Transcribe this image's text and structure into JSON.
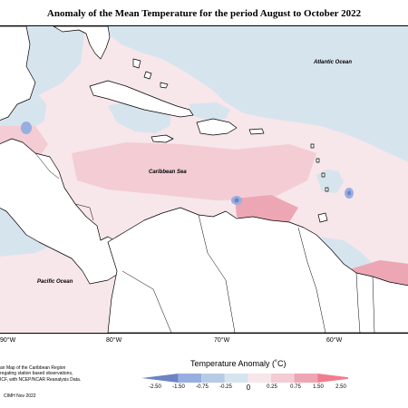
{
  "title": "Anomaly of the Mean Temperature for the period August to October 2022",
  "ocean_labels": {
    "atlantic": "Atlantic Ocean",
    "caribbean": "Caribbean Sea",
    "pacific": "Pacific Ocean"
  },
  "lon_labels": [
    "90°W",
    "80°W",
    "70°W",
    "60°W"
  ],
  "credits": [
    "an Map of the Caribbean Region",
    "regating station based observations,",
    "ICF, with NCEP/NCAR Reanalysis Data."
  ],
  "footer": "CIMH Nov 2022",
  "legend": {
    "title": "Temperature Anomaly (˚C)",
    "ticks": [
      "-2.50",
      "-1.50",
      "-0.75",
      "-0.25",
      "0",
      "0.25",
      "0.75",
      "1.50",
      "2.50"
    ],
    "colors": [
      "#6c84c4",
      "#98aee0",
      "#b8cbe6",
      "#d6e4ee",
      "#f7e6ea",
      "#f3ccd4",
      "#eda6b3",
      "#ef7d8f"
    ]
  },
  "colors": {
    "cool_fill": "#d6e4ee",
    "warm_fill": "#f7e6ea",
    "warm_fill_2": "#f3ccd4",
    "cold_core": "#7d97cf"
  }
}
